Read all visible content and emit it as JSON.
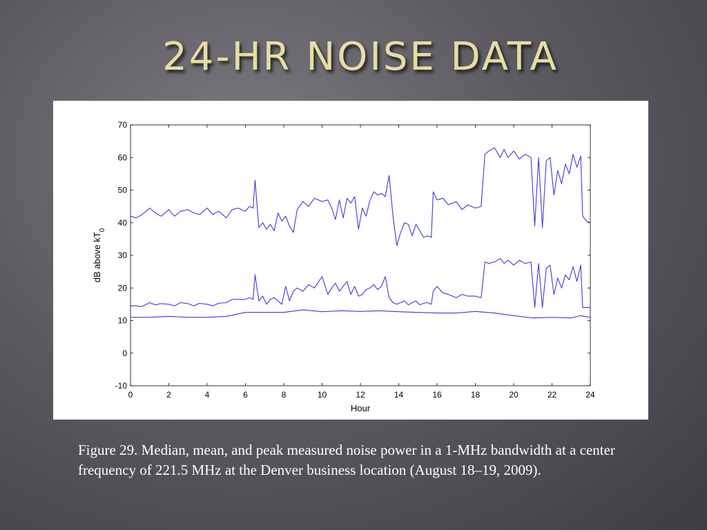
{
  "slide": {
    "title": "24-HR NOISE DATA",
    "caption": "Figure 29. Median, mean, and peak measured noise power in a 1-MHz bandwidth at a center frequency of 221.5 MHz at the Denver business location (August 18–19, 2009)."
  },
  "colors": {
    "line": "#3a3ad6",
    "axis": "#000000",
    "title": "#e8dca2"
  },
  "chart_data": {
    "type": "line",
    "title": "",
    "xlabel": "Hour",
    "ylabel": "dB above kT_0",
    "xlim": [
      0,
      24
    ],
    "ylim": [
      -10,
      70
    ],
    "xticks": [
      "0",
      "2",
      "4",
      "6",
      "8",
      "10",
      "12",
      "14",
      "16",
      "18",
      "20",
      "22",
      "24"
    ],
    "yticks": [
      "-10",
      "0",
      "10",
      "20",
      "30",
      "40",
      "50",
      "60",
      "70"
    ],
    "grid": false,
    "series": [
      {
        "x": [
          0,
          0.3,
          0.6,
          1,
          1.3,
          1.6,
          2,
          2.3,
          2.6,
          3,
          3.3,
          3.6,
          4,
          4.3,
          4.6,
          5,
          5.3,
          5.6,
          6,
          6.2,
          6.4,
          6.5,
          6.7,
          6.9,
          7.1,
          7.3,
          7.5,
          7.7,
          7.9,
          8.1,
          8.3,
          8.5,
          8.7,
          9,
          9.3,
          9.6,
          10,
          10.3,
          10.5,
          10.7,
          10.9,
          11.1,
          11.3,
          11.5,
          11.7,
          11.9,
          12.1,
          12.3,
          12.5,
          12.7,
          12.9,
          13.1,
          13.3,
          13.5,
          13.7,
          13.9,
          14.1,
          14.3,
          14.5,
          14.7,
          14.9,
          15.1,
          15.3,
          15.5,
          15.7,
          15.8,
          16,
          16.3,
          16.6,
          17,
          17.3,
          17.6,
          18,
          18.3,
          18.5,
          18.7,
          19,
          19.3,
          19.5,
          19.7,
          20,
          20.3,
          20.6,
          20.9,
          21.1,
          21.3,
          21.5,
          21.7,
          21.9,
          22.1,
          22.3,
          22.5,
          22.7,
          22.9,
          23.1,
          23.3,
          23.5,
          23.6,
          23.8,
          24
        ],
        "y": [
          42,
          41.5,
          42.5,
          44.5,
          43,
          42,
          44,
          42,
          43.5,
          44,
          43,
          42.5,
          44.5,
          42.5,
          43.5,
          41.5,
          44,
          44.5,
          43.5,
          45,
          44.5,
          53,
          38.5,
          40,
          38,
          39.5,
          37.5,
          43,
          40.5,
          42,
          39,
          37,
          44,
          46.5,
          45,
          47.5,
          46.5,
          47,
          44.5,
          41,
          47,
          41.5,
          47.5,
          46,
          48,
          38,
          44.5,
          42,
          47,
          49.5,
          48.5,
          49,
          48,
          54.5,
          42,
          33,
          37,
          40,
          39.5,
          36,
          39.5,
          37.5,
          35.5,
          36,
          35.5,
          49.5,
          47,
          47.5,
          45.5,
          46.5,
          44,
          45.5,
          44.5,
          45,
          61,
          62,
          63,
          60,
          62.5,
          60,
          62,
          59.5,
          61,
          60,
          39,
          60,
          38.5,
          59,
          60,
          48.5,
          56,
          52,
          58,
          55,
          61,
          57,
          60.5,
          42,
          40.5,
          40
        ]
      },
      {
        "x": [
          0,
          0.3,
          0.6,
          1,
          1.3,
          1.6,
          2,
          2.3,
          2.6,
          3,
          3.3,
          3.6,
          4,
          4.3,
          4.6,
          5,
          5.3,
          5.6,
          6,
          6.2,
          6.4,
          6.5,
          6.7,
          6.9,
          7.1,
          7.3,
          7.5,
          7.7,
          7.9,
          8.1,
          8.3,
          8.5,
          8.7,
          9,
          9.3,
          9.6,
          10,
          10.3,
          10.5,
          10.7,
          10.9,
          11.1,
          11.3,
          11.5,
          11.7,
          11.9,
          12.1,
          12.3,
          12.5,
          12.7,
          12.9,
          13.1,
          13.3,
          13.5,
          13.7,
          13.9,
          14.1,
          14.3,
          14.5,
          14.7,
          14.9,
          15.1,
          15.3,
          15.5,
          15.7,
          15.8,
          16,
          16.3,
          16.6,
          17,
          17.3,
          17.6,
          18,
          18.3,
          18.5,
          18.7,
          19,
          19.3,
          19.5,
          19.7,
          20,
          20.3,
          20.6,
          20.9,
          21.1,
          21.3,
          21.5,
          21.7,
          21.9,
          22.1,
          22.3,
          22.5,
          22.7,
          22.9,
          23.1,
          23.3,
          23.5,
          23.6,
          23.8,
          24
        ],
        "y": [
          14.5,
          14.5,
          14.3,
          15.5,
          14.8,
          15.2,
          15,
          14.5,
          15.5,
          15.2,
          14.5,
          15.3,
          15,
          14.5,
          15.3,
          15.5,
          16.5,
          16.5,
          16.5,
          17,
          16.5,
          24,
          16,
          17.5,
          15,
          16.5,
          17,
          16,
          15,
          20.5,
          16,
          19,
          20,
          19,
          21,
          20,
          23.5,
          18,
          20,
          21.5,
          19,
          20.5,
          22,
          18,
          20.5,
          17.5,
          18,
          19.5,
          20,
          21,
          19.5,
          20.5,
          23.5,
          17,
          15.5,
          15,
          15.5,
          16,
          14.8,
          15.5,
          16,
          14.8,
          15.3,
          15.5,
          15,
          19,
          20.5,
          18.5,
          18,
          17,
          18,
          17.5,
          17.5,
          17,
          28,
          27.5,
          28,
          29,
          27.5,
          28.5,
          27,
          28.5,
          27.5,
          28,
          14,
          27.5,
          14,
          26,
          27,
          18,
          23,
          20,
          24,
          22.5,
          26.5,
          22,
          27,
          14,
          14,
          14
        ]
      },
      {
        "x": [
          0,
          1,
          2,
          3,
          4,
          5,
          6,
          7,
          8,
          9,
          10,
          11,
          12,
          13,
          14,
          15,
          16,
          17,
          18,
          19,
          20,
          21,
          22,
          23,
          23.5,
          24
        ],
        "y": [
          11,
          11,
          11.3,
          11,
          11,
          11.3,
          12.5,
          12.5,
          12.5,
          13.3,
          12.7,
          13,
          12.8,
          13,
          12.7,
          12.5,
          12.3,
          12.3,
          12.8,
          12.3,
          11.5,
          10.8,
          11,
          10.8,
          11.5,
          11
        ]
      }
    ]
  }
}
